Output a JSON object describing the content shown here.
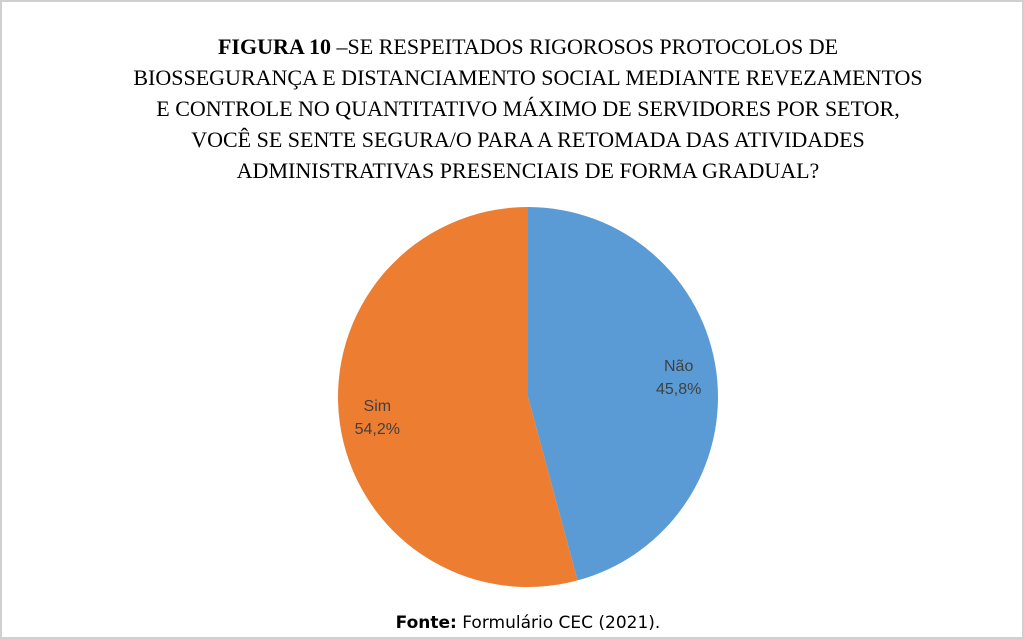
{
  "chart_data": {
    "type": "pie",
    "figure_label": "FIGURA 10",
    "title_lines": [
      "–SE RESPEITADOS RIGOROSOS PROTOCOLOS DE",
      "BIOSSEGURANÇA E DISTANCIAMENTO SOCIAL MEDIANTE REVEZAMENTOS",
      "E CONTROLE NO QUANTITATIVO MÁXIMO DE SERVIDORES POR SETOR,",
      "VOCÊ SE SENTE SEGURA/O PARA A RETOMADA DAS ATIVIDADES",
      "ADMINISTRATIVAS PRESENCIAIS DE FORMA GRADUAL?"
    ],
    "categories": [
      "Não",
      "Sim"
    ],
    "values": [
      45.8,
      54.2
    ],
    "value_labels": [
      "45,8%",
      "54,2%"
    ],
    "colors": [
      "#5b9bd5",
      "#ed7d31"
    ],
    "source_label": "Fonte:",
    "source": "Formulário CEC (2021)."
  }
}
